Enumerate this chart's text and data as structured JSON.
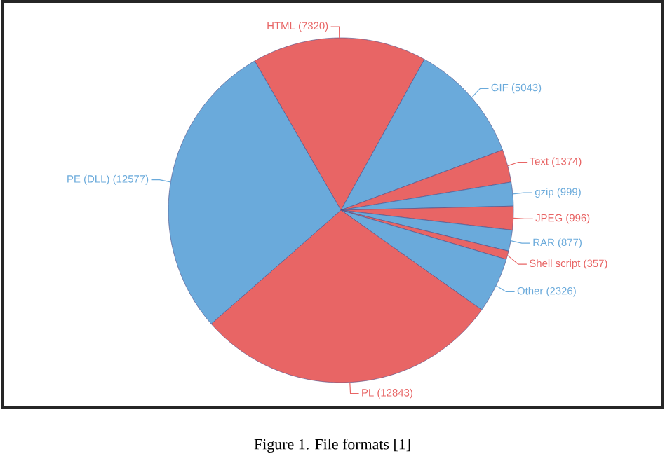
{
  "chart_data": {
    "type": "pie",
    "categories": [
      "HTML",
      "GIF",
      "Text",
      "gzip",
      "JPEG",
      "RAR",
      "Shell script",
      "Other",
      "PL",
      "PE (DLL)"
    ],
    "values": [
      7320,
      5043,
      1374,
      999,
      996,
      877,
      357,
      2326,
      12843,
      12577
    ],
    "colors": [
      "#e86565",
      "#6aaadb",
      "#e86565",
      "#6aaadb",
      "#e86565",
      "#6aaadb",
      "#e86565",
      "#6aaadb",
      "#e86565",
      "#6aaadb"
    ],
    "value_labels": [
      "(7320)",
      "(5043)",
      "(1374)",
      "(999)",
      "(996)",
      "(877)",
      "(357)",
      "(2326)",
      "(12843)",
      "(12577)"
    ],
    "annotations": [
      "Figure 1. File formats [1]"
    ]
  }
}
